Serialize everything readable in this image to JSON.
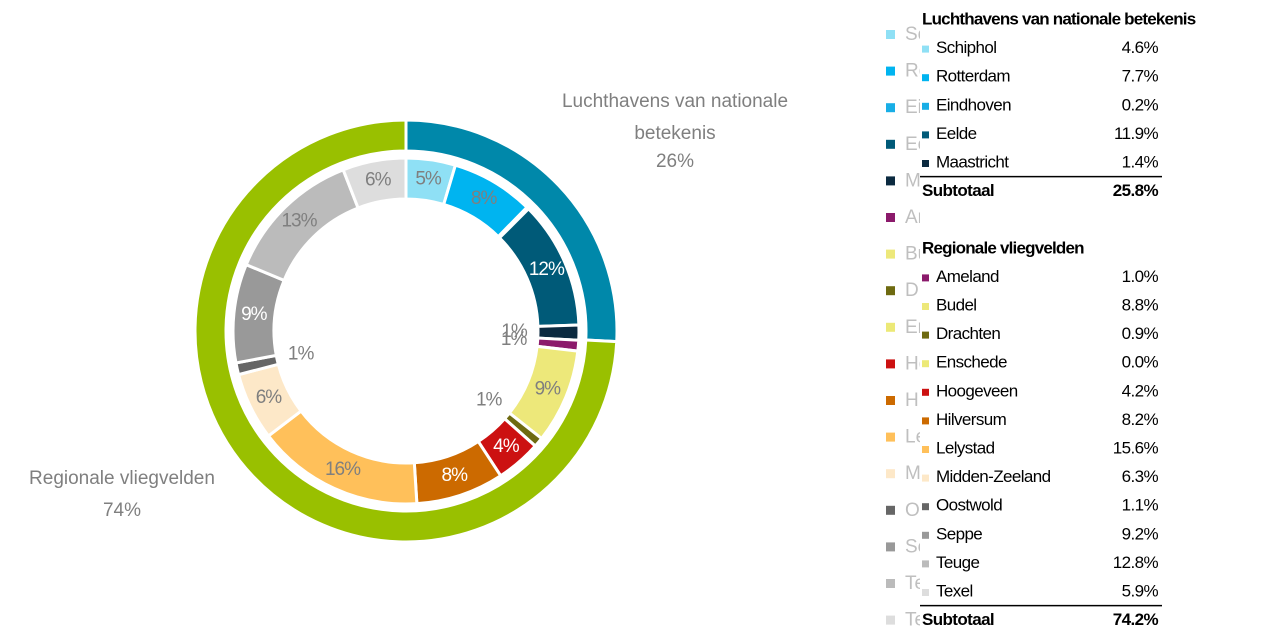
{
  "chart_data": {
    "type": "donut",
    "groups": [
      {
        "name": "Luchthavens van nationale betekenis",
        "value": 25.8,
        "value_label": "26%",
        "color": "#0088aa",
        "subtotal_title": "Subtotaal",
        "subtotal_label": "25.8%",
        "items": {
          "categories": [
            "Schiphol",
            "Rotterdam",
            "Eindhoven",
            "Eelde",
            "Maastricht"
          ],
          "values": [
            4.6,
            7.7,
            0.2,
            11.9,
            1.4
          ],
          "value_labels": [
            "5%",
            "8%",
            null,
            "12%",
            "1%"
          ],
          "table_labels": [
            "4.6%",
            "7.7%",
            "0.2%",
            "11.9%",
            "1.4%"
          ],
          "colors": [
            "#8fe0f5",
            "#00b4f0",
            "#18aee6",
            "#005a78",
            "#0b2a40"
          ]
        }
      },
      {
        "name": "Regionale vliegvelden",
        "value": 74.2,
        "value_label": "74%",
        "color": "#99c000",
        "subtotal_title": "Subtotaal",
        "subtotal_label": "74.2%",
        "items": {
          "categories": [
            "Ameland",
            "Budel",
            "Drachten",
            "Enschede",
            "Hoogeveen",
            "Hilversum",
            "Lelystad",
            "Midden-Zeeland",
            "Oostwold",
            "Seppe",
            "Teuge",
            "Texel"
          ],
          "values": [
            1.0,
            8.8,
            0.9,
            0.0,
            4.2,
            8.2,
            15.6,
            6.3,
            1.1,
            9.2,
            12.8,
            5.9
          ],
          "value_labels": [
            "1%",
            "9%",
            "1%",
            null,
            "4%",
            "8%",
            "16%",
            "6%",
            "1%",
            "9%",
            "13%",
            "6%"
          ],
          "table_labels": [
            "1.0%",
            "8.8%",
            "0.9%",
            "0.0%",
            "4.2%",
            "8.2%",
            "15.6%",
            "6.3%",
            "1.1%",
            "9.2%",
            "12.8%",
            "5.9%"
          ],
          "colors": [
            "#8b1a6b",
            "#ede87a",
            "#6e6a10",
            "#ece977",
            "#cc1111",
            "#cc6a00",
            "#ffc05a",
            "#fde8c8",
            "#666666",
            "#999999",
            "#bbbbbb",
            "#dddddd"
          ]
        }
      }
    ]
  }
}
